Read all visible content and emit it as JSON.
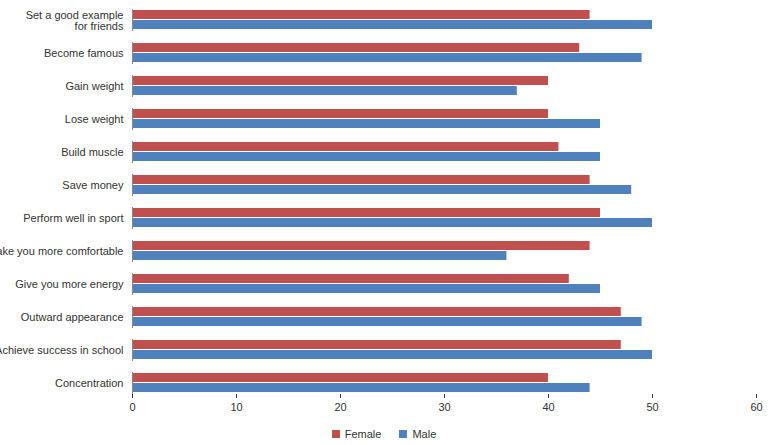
{
  "chart_data": {
    "type": "bar",
    "orientation": "horizontal",
    "legend": "bottom",
    "grid": false,
    "categories": [
      "Set a good example\nfor friends",
      "Become famous",
      "Gain weight",
      "Lose weight",
      "Build muscle",
      "Save money",
      "Perform well in sport",
      "Make you more comfortable",
      "Give you more energy",
      "Outward appearance",
      "Achieve success in school",
      "Concentration"
    ],
    "series": [
      {
        "name": "Female",
        "color": "#C0504D",
        "values": [
          44,
          43,
          40,
          40,
          41,
          44,
          45,
          44,
          42,
          47,
          47,
          40
        ]
      },
      {
        "name": "Male",
        "color": "#4F81BD",
        "values": [
          50,
          49,
          37,
          45,
          45,
          48,
          50,
          36,
          45,
          49,
          50,
          44
        ]
      }
    ],
    "xlim": [
      0,
      60
    ],
    "xticks": [
      0,
      10,
      20,
      30,
      40,
      50,
      60
    ]
  }
}
